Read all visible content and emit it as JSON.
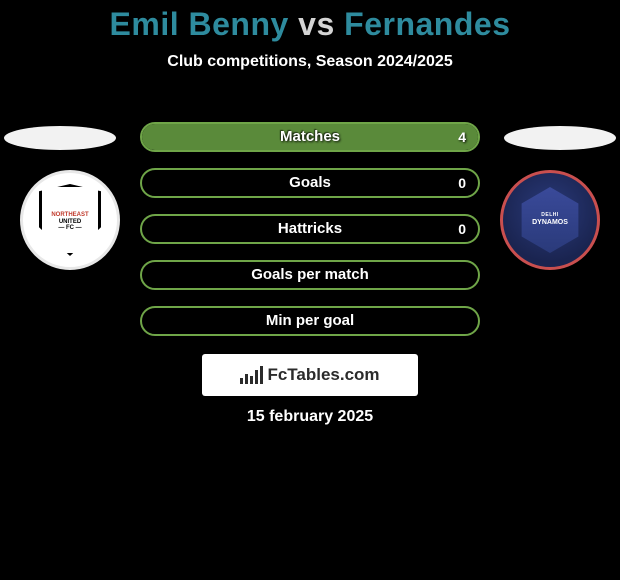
{
  "title": {
    "player1": "Emil Benny",
    "vs": "vs",
    "player2": "Fernandes",
    "color_player": "#2e8b9e",
    "color_vs": "#d4d4d4",
    "fontsize": 32
  },
  "subtitle": "Club competitions, Season 2024/2025",
  "date": "15 february 2025",
  "colors": {
    "background": "#000000",
    "ellipse_left": "#f2f2f2",
    "ellipse_right": "#f2f2f2",
    "text_white": "#ffffff"
  },
  "club_left": {
    "name": "NorthEast United FC",
    "line1": "NORTHEAST",
    "line2": "UNITED",
    "line3": "— FC —"
  },
  "club_right": {
    "name": "Delhi Dynamos",
    "line1": "DELHI",
    "line2": "DYNAMOS"
  },
  "brand": "FcTables.com",
  "stats": [
    {
      "label": "Matches",
      "left_value": "",
      "right_value": "4",
      "fill_pct": 100,
      "fill_color": "#5a8a3a",
      "border_color": "#6fa548"
    },
    {
      "label": "Goals",
      "left_value": "",
      "right_value": "0",
      "fill_pct": 0,
      "fill_color": "#5a8a3a",
      "border_color": "#6fa548"
    },
    {
      "label": "Hattricks",
      "left_value": "",
      "right_value": "0",
      "fill_pct": 0,
      "fill_color": "#5a8a3a",
      "border_color": "#6fa548"
    },
    {
      "label": "Goals per match",
      "left_value": "",
      "right_value": "",
      "fill_pct": 0,
      "fill_color": "#5a8a3a",
      "border_color": "#6fa548"
    },
    {
      "label": "Min per goal",
      "left_value": "",
      "right_value": "",
      "fill_pct": 0,
      "fill_color": "#5a8a3a",
      "border_color": "#6fa548"
    }
  ]
}
